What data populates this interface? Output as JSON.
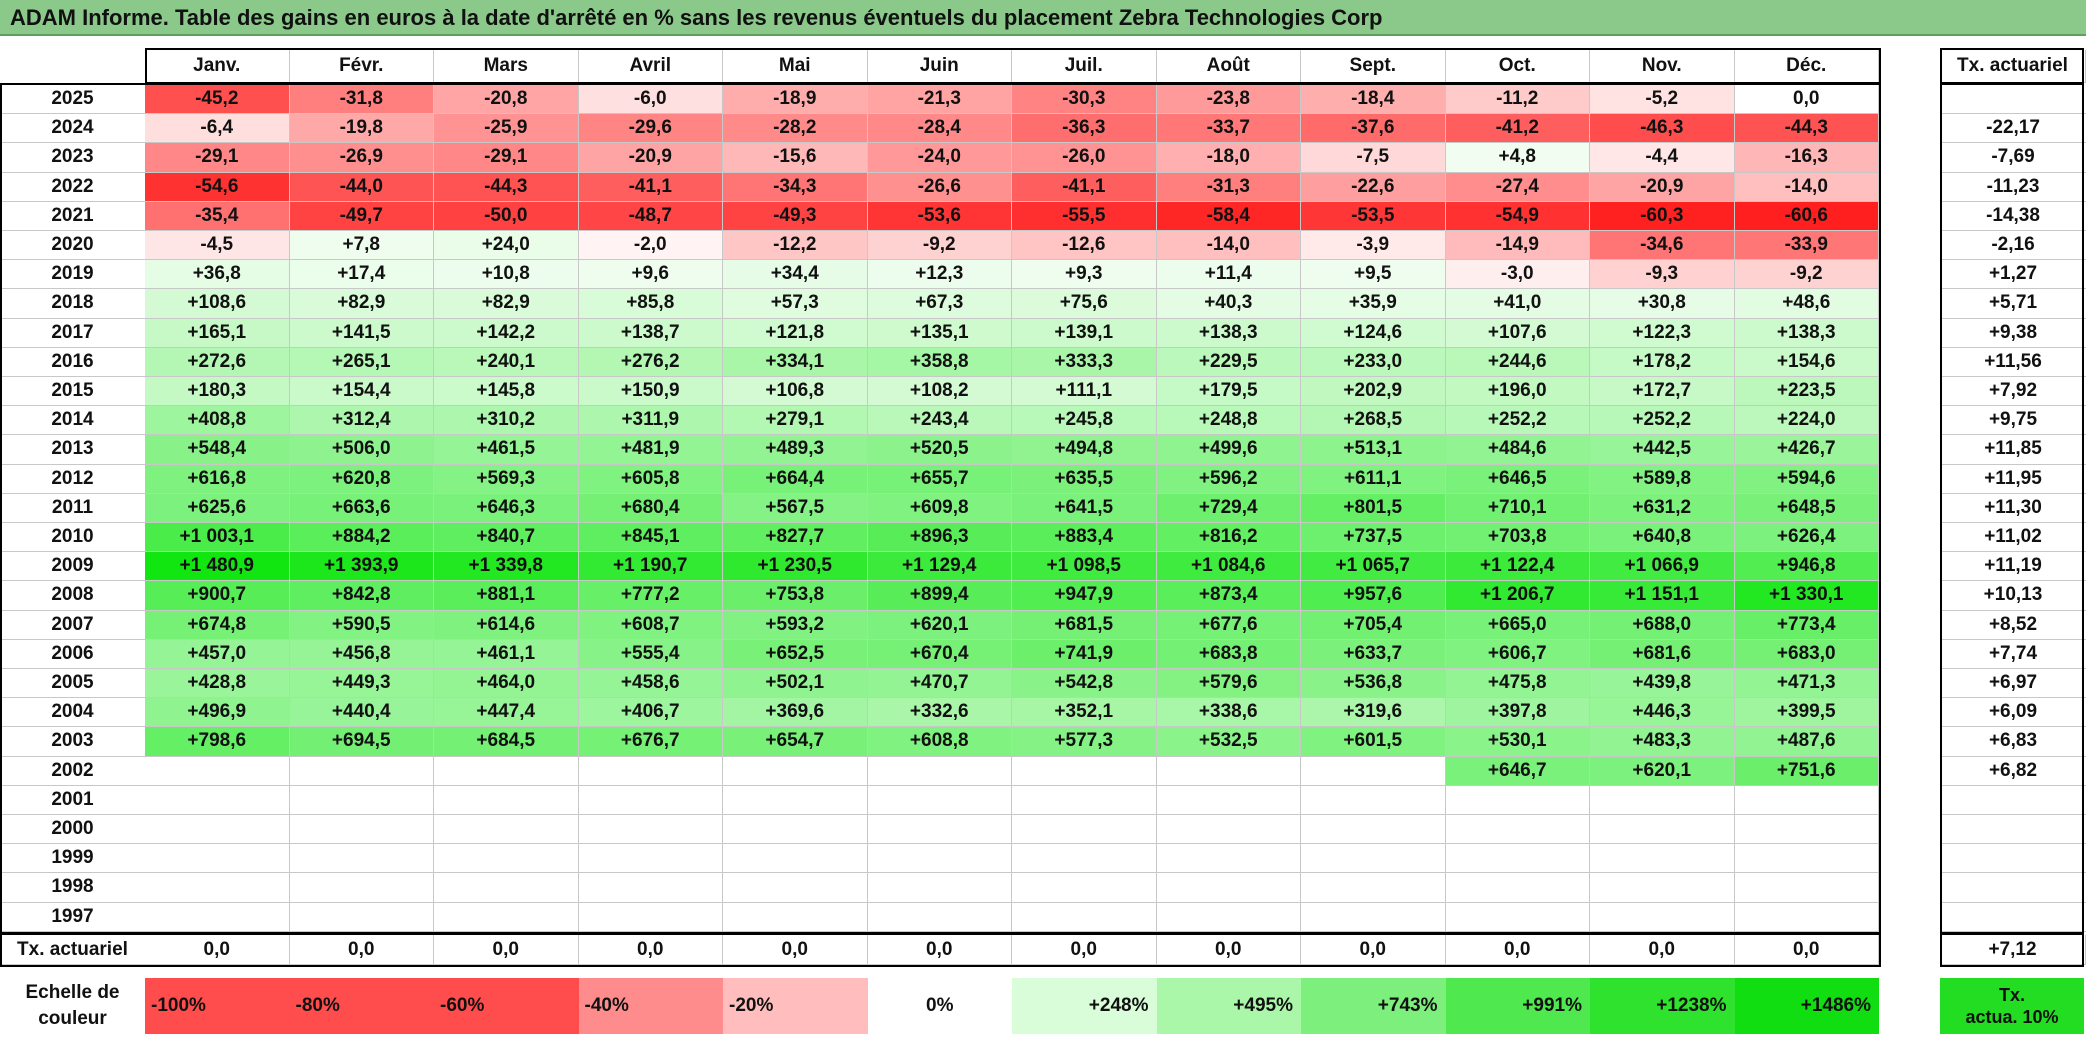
{
  "title": "ADAM Informe. Table des gains en euros à la date d'arrêté en % sans les revenus éventuels du placement Zebra Technologies Corp",
  "chart_data": {
    "type": "table",
    "months": [
      "Janv.",
      "Févr.",
      "Mars",
      "Avril",
      "Mai",
      "Juin",
      "Juil.",
      "Août",
      "Sept.",
      "Oct.",
      "Nov.",
      "Déc."
    ],
    "tx_header": "Tx. actuariel",
    "rows": [
      {
        "year": "2025",
        "values": [
          "-45,2",
          "-31,8",
          "-20,8",
          "-6,0",
          "-18,9",
          "-21,3",
          "-30,3",
          "-23,8",
          "-18,4",
          "-11,2",
          "-5,2",
          "0,0"
        ],
        "tx": ""
      },
      {
        "year": "2024",
        "values": [
          "-6,4",
          "-19,8",
          "-25,9",
          "-29,6",
          "-28,2",
          "-28,4",
          "-36,3",
          "-33,7",
          "-37,6",
          "-41,2",
          "-46,3",
          "-44,3"
        ],
        "tx": "-22,17"
      },
      {
        "year": "2023",
        "values": [
          "-29,1",
          "-26,9",
          "-29,1",
          "-20,9",
          "-15,6",
          "-24,0",
          "-26,0",
          "-18,0",
          "-7,5",
          "+4,8",
          "-4,4",
          "-16,3"
        ],
        "tx": "-7,69"
      },
      {
        "year": "2022",
        "values": [
          "-54,6",
          "-44,0",
          "-44,3",
          "-41,1",
          "-34,3",
          "-26,6",
          "-41,1",
          "-31,3",
          "-22,6",
          "-27,4",
          "-20,9",
          "-14,0"
        ],
        "tx": "-11,23"
      },
      {
        "year": "2021",
        "values": [
          "-35,4",
          "-49,7",
          "-50,0",
          "-48,7",
          "-49,3",
          "-53,6",
          "-55,5",
          "-58,4",
          "-53,5",
          "-54,9",
          "-60,3",
          "-60,6"
        ],
        "tx": "-14,38"
      },
      {
        "year": "2020",
        "values": [
          "-4,5",
          "+7,8",
          "+24,0",
          "-2,0",
          "-12,2",
          "-9,2",
          "-12,6",
          "-14,0",
          "-3,9",
          "-14,9",
          "-34,6",
          "-33,9"
        ],
        "tx": "-2,16"
      },
      {
        "year": "2019",
        "values": [
          "+36,8",
          "+17,4",
          "+10,8",
          "+9,6",
          "+34,4",
          "+12,3",
          "+9,3",
          "+11,4",
          "+9,5",
          "-3,0",
          "-9,3",
          "-9,2"
        ],
        "tx": "+1,27"
      },
      {
        "year": "2018",
        "values": [
          "+108,6",
          "+82,9",
          "+82,9",
          "+85,8",
          "+57,3",
          "+67,3",
          "+75,6",
          "+40,3",
          "+35,9",
          "+41,0",
          "+30,8",
          "+48,6"
        ],
        "tx": "+5,71"
      },
      {
        "year": "2017",
        "values": [
          "+165,1",
          "+141,5",
          "+142,2",
          "+138,7",
          "+121,8",
          "+135,1",
          "+139,1",
          "+138,3",
          "+124,6",
          "+107,6",
          "+122,3",
          "+138,3"
        ],
        "tx": "+9,38"
      },
      {
        "year": "2016",
        "values": [
          "+272,6",
          "+265,1",
          "+240,1",
          "+276,2",
          "+334,1",
          "+358,8",
          "+333,3",
          "+229,5",
          "+233,0",
          "+244,6",
          "+178,2",
          "+154,6"
        ],
        "tx": "+11,56"
      },
      {
        "year": "2015",
        "values": [
          "+180,3",
          "+154,4",
          "+145,8",
          "+150,9",
          "+106,8",
          "+108,2",
          "+111,1",
          "+179,5",
          "+202,9",
          "+196,0",
          "+172,7",
          "+223,5"
        ],
        "tx": "+7,92"
      },
      {
        "year": "2014",
        "values": [
          "+408,8",
          "+312,4",
          "+310,2",
          "+311,9",
          "+279,1",
          "+243,4",
          "+245,8",
          "+248,8",
          "+268,5",
          "+252,2",
          "+252,2",
          "+224,0"
        ],
        "tx": "+9,75"
      },
      {
        "year": "2013",
        "values": [
          "+548,4",
          "+506,0",
          "+461,5",
          "+481,9",
          "+489,3",
          "+520,5",
          "+494,8",
          "+499,6",
          "+513,1",
          "+484,6",
          "+442,5",
          "+426,7"
        ],
        "tx": "+11,85"
      },
      {
        "year": "2012",
        "values": [
          "+616,8",
          "+620,8",
          "+569,3",
          "+605,8",
          "+664,4",
          "+655,7",
          "+635,5",
          "+596,2",
          "+611,1",
          "+646,5",
          "+589,8",
          "+594,6"
        ],
        "tx": "+11,95"
      },
      {
        "year": "2011",
        "values": [
          "+625,6",
          "+663,6",
          "+646,3",
          "+680,4",
          "+567,5",
          "+609,8",
          "+641,5",
          "+729,4",
          "+801,5",
          "+710,1",
          "+631,2",
          "+648,5"
        ],
        "tx": "+11,30"
      },
      {
        "year": "2010",
        "values": [
          "+1 003,1",
          "+884,2",
          "+840,7",
          "+845,1",
          "+827,7",
          "+896,3",
          "+883,4",
          "+816,2",
          "+737,5",
          "+703,8",
          "+640,8",
          "+626,4"
        ],
        "tx": "+11,02"
      },
      {
        "year": "2009",
        "values": [
          "+1 480,9",
          "+1 393,9",
          "+1 339,8",
          "+1 190,7",
          "+1 230,5",
          "+1 129,4",
          "+1 098,5",
          "+1 084,6",
          "+1 065,7",
          "+1 122,4",
          "+1 066,9",
          "+946,8"
        ],
        "tx": "+11,19"
      },
      {
        "year": "2008",
        "values": [
          "+900,7",
          "+842,8",
          "+881,1",
          "+777,2",
          "+753,8",
          "+899,4",
          "+947,9",
          "+873,4",
          "+957,6",
          "+1 206,7",
          "+1 151,1",
          "+1 330,1"
        ],
        "tx": "+10,13"
      },
      {
        "year": "2007",
        "values": [
          "+674,8",
          "+590,5",
          "+614,6",
          "+608,7",
          "+593,2",
          "+620,1",
          "+681,5",
          "+677,6",
          "+705,4",
          "+665,0",
          "+688,0",
          "+773,4"
        ],
        "tx": "+8,52"
      },
      {
        "year": "2006",
        "values": [
          "+457,0",
          "+456,8",
          "+461,1",
          "+555,4",
          "+652,5",
          "+670,4",
          "+741,9",
          "+683,8",
          "+633,7",
          "+606,7",
          "+681,6",
          "+683,0"
        ],
        "tx": "+7,74"
      },
      {
        "year": "2005",
        "values": [
          "+428,8",
          "+449,3",
          "+464,0",
          "+458,6",
          "+502,1",
          "+470,7",
          "+542,8",
          "+579,6",
          "+536,8",
          "+475,8",
          "+439,8",
          "+471,3"
        ],
        "tx": "+6,97"
      },
      {
        "year": "2004",
        "values": [
          "+496,9",
          "+440,4",
          "+447,4",
          "+406,7",
          "+369,6",
          "+332,6",
          "+352,1",
          "+338,6",
          "+319,6",
          "+397,8",
          "+446,3",
          "+399,5"
        ],
        "tx": "+6,09"
      },
      {
        "year": "2003",
        "values": [
          "+798,6",
          "+694,5",
          "+684,5",
          "+676,7",
          "+654,7",
          "+608,8",
          "+577,3",
          "+532,5",
          "+601,5",
          "+530,1",
          "+483,3",
          "+487,6"
        ],
        "tx": "+6,83"
      },
      {
        "year": "2002",
        "values": [
          "",
          "",
          "",
          "",
          "",
          "",
          "",
          "",
          "",
          "+646,7",
          "+620,1",
          "+751,6"
        ],
        "tx": "+6,82"
      },
      {
        "year": "2001",
        "values": [
          "",
          "",
          "",
          "",
          "",
          "",
          "",
          "",
          "",
          "",
          "",
          ""
        ],
        "tx": ""
      },
      {
        "year": "2000",
        "values": [
          "",
          "",
          "",
          "",
          "",
          "",
          "",
          "",
          "",
          "",
          "",
          ""
        ],
        "tx": ""
      },
      {
        "year": "1999",
        "values": [
          "",
          "",
          "",
          "",
          "",
          "",
          "",
          "",
          "",
          "",
          "",
          ""
        ],
        "tx": ""
      },
      {
        "year": "1998",
        "values": [
          "",
          "",
          "",
          "",
          "",
          "",
          "",
          "",
          "",
          "",
          "",
          ""
        ],
        "tx": ""
      },
      {
        "year": "1997",
        "values": [
          "",
          "",
          "",
          "",
          "",
          "",
          "",
          "",
          "",
          "",
          "",
          ""
        ],
        "tx": ""
      }
    ],
    "footer": {
      "label": "Tx. actuariel",
      "values": [
        "0,0",
        "0,0",
        "0,0",
        "0,0",
        "0,0",
        "0,0",
        "0,0",
        "0,0",
        "0,0",
        "0,0",
        "0,0",
        "0,0"
      ],
      "tx": "+7,12"
    },
    "color_scale": {
      "label_line1": "Echelle de",
      "label_line2": "couleur",
      "steps": [
        {
          "label": "-100%",
          "color": "#ff4d4d"
        },
        {
          "label": "-80%",
          "color": "#ff4d4d"
        },
        {
          "label": "-60%",
          "color": "#ff4d4d"
        },
        {
          "label": "-40%",
          "color": "#ff8c8c"
        },
        {
          "label": "-20%",
          "color": "#ffbdbd"
        },
        {
          "label": "0%",
          "color": "#ffffff"
        },
        {
          "label": "+248%",
          "color": "#d9fcd9"
        },
        {
          "label": "+495%",
          "color": "#aaf7aa"
        },
        {
          "label": "+743%",
          "color": "#7def7d"
        },
        {
          "label": "+991%",
          "color": "#4fe84f"
        },
        {
          "label": "+1238%",
          "color": "#2ee22e"
        },
        {
          "label": "+1486%",
          "color": "#11de11"
        }
      ],
      "tx_label_line1": "Tx.",
      "tx_label_line2": "actua. 10%",
      "tx_color": "#22dd22"
    },
    "colors": {
      "title_bg": "#8bc98b",
      "max_negative": "#ff1f1f",
      "max_positive": "#11e611"
    }
  }
}
